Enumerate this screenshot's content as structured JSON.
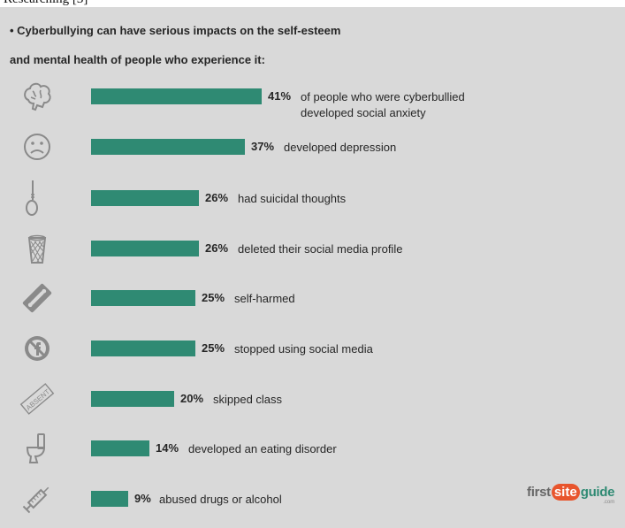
{
  "top_fragment": "Researching [3]",
  "intro": {
    "line1": "• Cyberbullying can have serious impacts on the self-esteem",
    "line2": "and mental health of people who experience it:"
  },
  "colors": {
    "bar": "#2f8a73",
    "background": "#d9d9d9",
    "icon": "#8a8a8a",
    "logo_accent": "#e8552d"
  },
  "chart_data": {
    "type": "bar",
    "orientation": "horizontal",
    "title": "",
    "xlabel": "",
    "ylabel": "",
    "unit": "%",
    "grid": false,
    "legend": "none",
    "xlim": [
      0,
      41
    ],
    "categories": [
      "of people who were cyberbullied developed social anxiety",
      "developed depression",
      "had suicidal thoughts",
      "deleted their social media profile",
      "self-harmed",
      "stopped using social media",
      "skipped class",
      "developed an eating disorder",
      "abused drugs or alcohol"
    ],
    "values": [
      41,
      37,
      26,
      26,
      25,
      25,
      20,
      14,
      9
    ]
  },
  "rows": [
    {
      "value": 41,
      "pct_label": "41%",
      "desc_lines": [
        "of people who were cyberbullied",
        "developed social anxiety"
      ],
      "icon": "brain-icon"
    },
    {
      "value": 37,
      "pct_label": "37%",
      "desc_lines": [
        "developed depression"
      ],
      "icon": "sad-face-icon"
    },
    {
      "value": 26,
      "pct_label": "26%",
      "desc_lines": [
        "had suicidal thoughts"
      ],
      "icon": "noose-icon"
    },
    {
      "value": 26,
      "pct_label": "26%",
      "desc_lines": [
        "deleted their social media profile"
      ],
      "icon": "trash-bin-icon"
    },
    {
      "value": 25,
      "pct_label": "25%",
      "desc_lines": [
        "self-harmed"
      ],
      "icon": "razor-blade-icon"
    },
    {
      "value": 25,
      "pct_label": "25%",
      "desc_lines": [
        "stopped using social media"
      ],
      "icon": "no-social-media-icon"
    },
    {
      "value": 20,
      "pct_label": "20%",
      "desc_lines": [
        "skipped class"
      ],
      "icon": "absent-stamp-icon",
      "icon_text": "ABSENT"
    },
    {
      "value": 14,
      "pct_label": "14%",
      "desc_lines": [
        "developed an eating disorder"
      ],
      "icon": "toilet-icon"
    },
    {
      "value": 9,
      "pct_label": "9%",
      "desc_lines": [
        "abused drugs or alcohol"
      ],
      "icon": "syringe-icon"
    }
  ],
  "logo": {
    "part1": "first",
    "part2": "site",
    "part3": "guide",
    "suffix": ".com"
  }
}
